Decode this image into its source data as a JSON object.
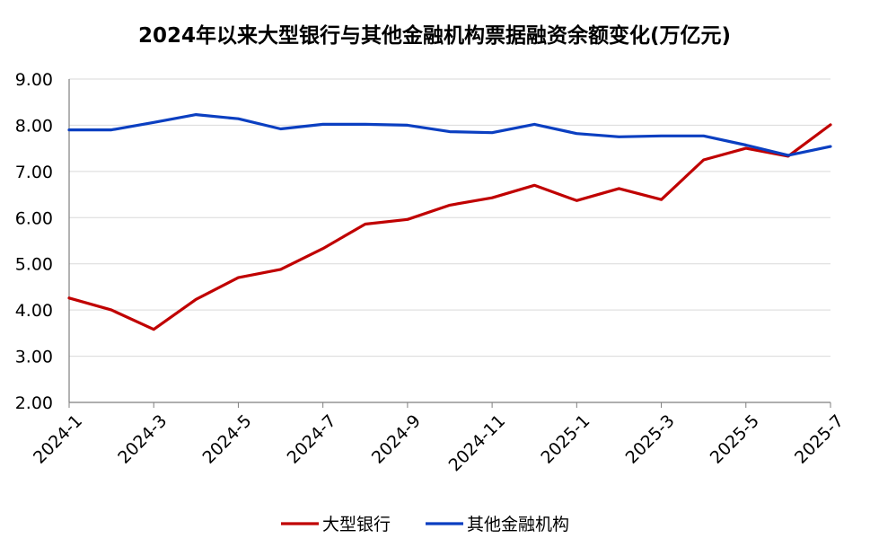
{
  "chart_data": {
    "type": "line",
    "title": "2024年以来大型银行与其他金融机构票据融资余额变化(万亿元)",
    "xlabel": "",
    "ylabel": "",
    "ylim": [
      2.0,
      9.0
    ],
    "ytick_labels": [
      "2.00",
      "3.00",
      "4.00",
      "5.00",
      "6.00",
      "7.00",
      "8.00",
      "9.00"
    ],
    "x": [
      "2024-1",
      "2024-2",
      "2024-3",
      "2024-4",
      "2024-5",
      "2024-6",
      "2024-7",
      "2024-8",
      "2024-9",
      "2024-10",
      "2024-11",
      "2024-12",
      "2025-1",
      "2025-2",
      "2025-3",
      "2025-4",
      "2025-5",
      "2025-6",
      "2025-7"
    ],
    "xtick_labels": [
      "2024-1",
      "2024-3",
      "2024-5",
      "2024-7",
      "2024-9",
      "2024-11",
      "2025-1",
      "2025-3",
      "2025-5",
      "2025-7"
    ],
    "grid": "horizontal",
    "legend_position": "bottom",
    "series": [
      {
        "name": "大型银行",
        "color": "#C00000",
        "values": [
          4.26,
          4.0,
          3.58,
          4.23,
          4.7,
          4.88,
          5.33,
          5.86,
          5.96,
          6.27,
          6.43,
          6.7,
          6.37,
          6.63,
          6.39,
          7.25,
          7.5,
          7.33,
          8.01
        ]
      },
      {
        "name": "其他金融机构",
        "color": "#0B3FC1",
        "values": [
          7.9,
          7.9,
          8.06,
          8.23,
          8.14,
          7.92,
          8.02,
          8.02,
          8.0,
          7.86,
          7.84,
          8.02,
          7.82,
          7.75,
          7.77,
          7.77,
          7.57,
          7.35,
          7.54
        ]
      }
    ]
  }
}
